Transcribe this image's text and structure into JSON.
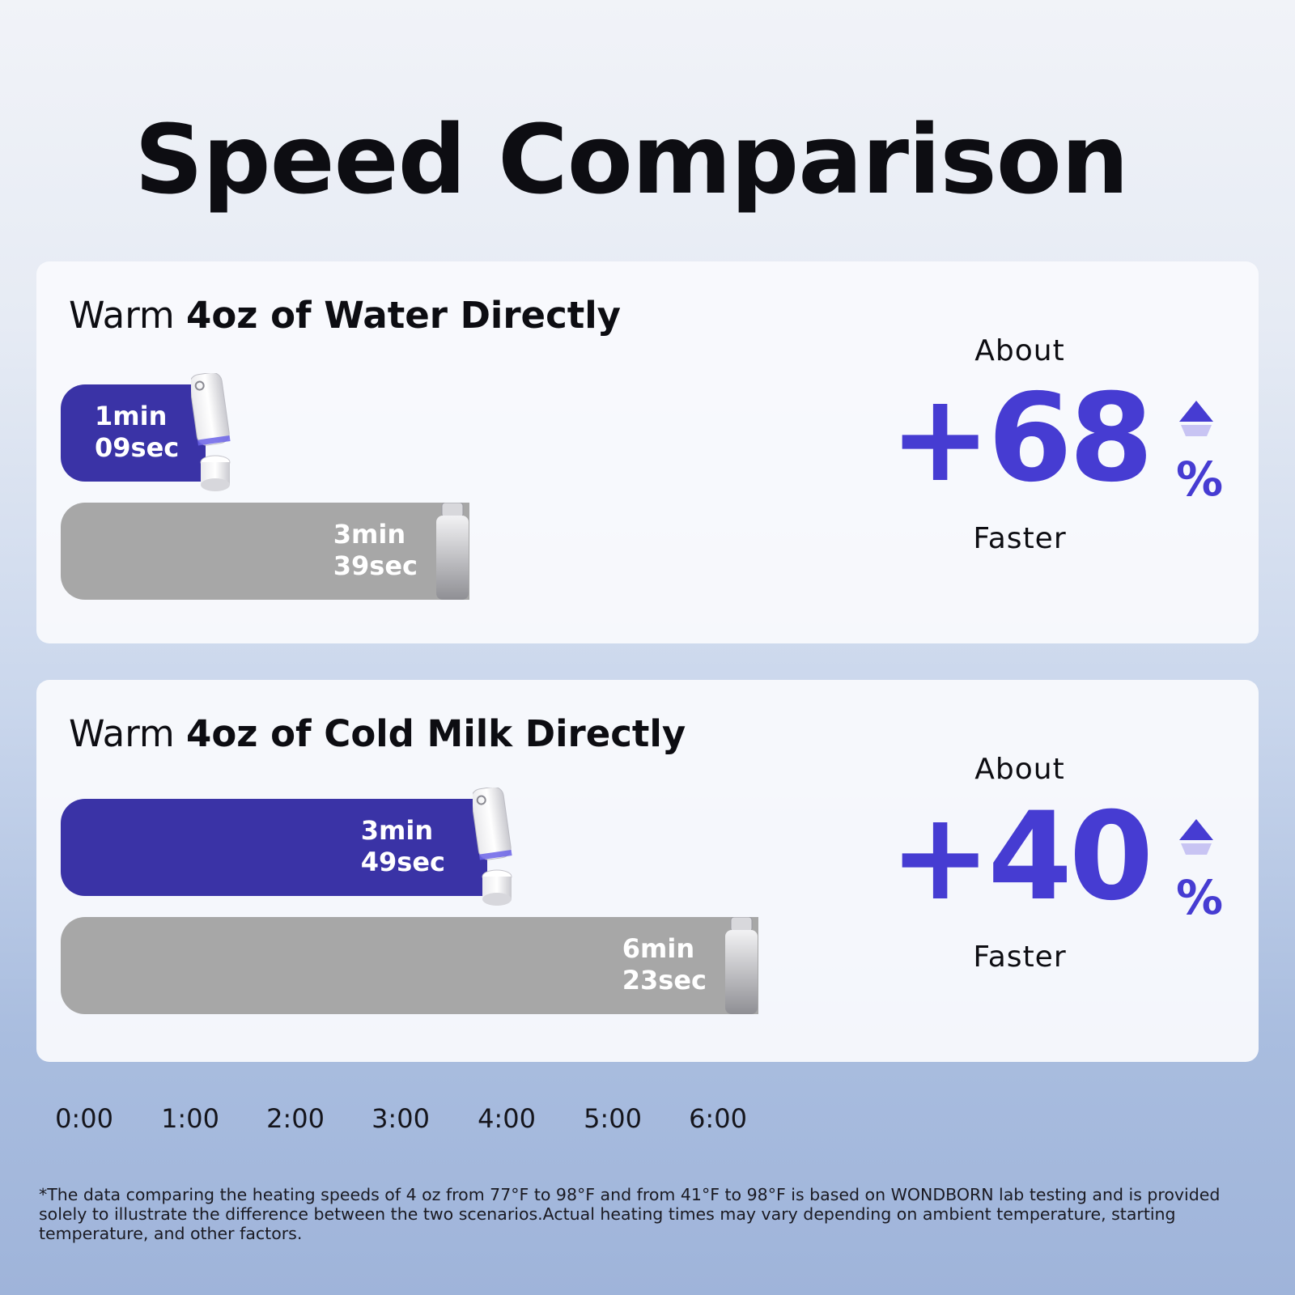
{
  "page": {
    "title": "Speed Comparison",
    "footnote": "*The data comparing the heating speeds of 4 oz from 77°F to 98°F and from 41°F to 98°F is based on WONDBORN lab testing and is provided solely to illustrate the difference between the two scenarios.Actual heating times may vary depending on ambient temperature, starting temperature, and other factors."
  },
  "colors": {
    "wondborn_bar": "#3a33a6",
    "regular_bar": "#a7a7a7",
    "accent": "#463cd2"
  },
  "chart_data": {
    "type": "bar",
    "orientation": "horizontal",
    "x_ticks": [
      "0:00",
      "1:00",
      "2:00",
      "3:00",
      "4:00",
      "5:00",
      "6:00"
    ],
    "xlim_seconds": [
      0,
      360
    ],
    "panels": [
      {
        "title_prefix": "Warm ",
        "title_bold": "4oz of Water Directly",
        "bars": [
          {
            "seconds": 69,
            "label_line1": "1min",
            "label_line2": "09sec"
          },
          {
            "seconds": 219,
            "label_line1": "3min",
            "label_line2": "39sec"
          }
        ],
        "about": "About",
        "value": "+68",
        "percent_sign": "%",
        "faster": "Faster"
      },
      {
        "title_prefix": "Warm ",
        "title_bold": "4oz of Cold Milk Directly",
        "bars": [
          {
            "seconds": 229,
            "label_line1": "3min",
            "label_line2": "49sec"
          },
          {
            "seconds": 383,
            "label_line1": "6min",
            "label_line2": "23sec"
          }
        ],
        "about": "About",
        "value": "+40",
        "percent_sign": "%",
        "faster": "Faster"
      }
    ]
  }
}
